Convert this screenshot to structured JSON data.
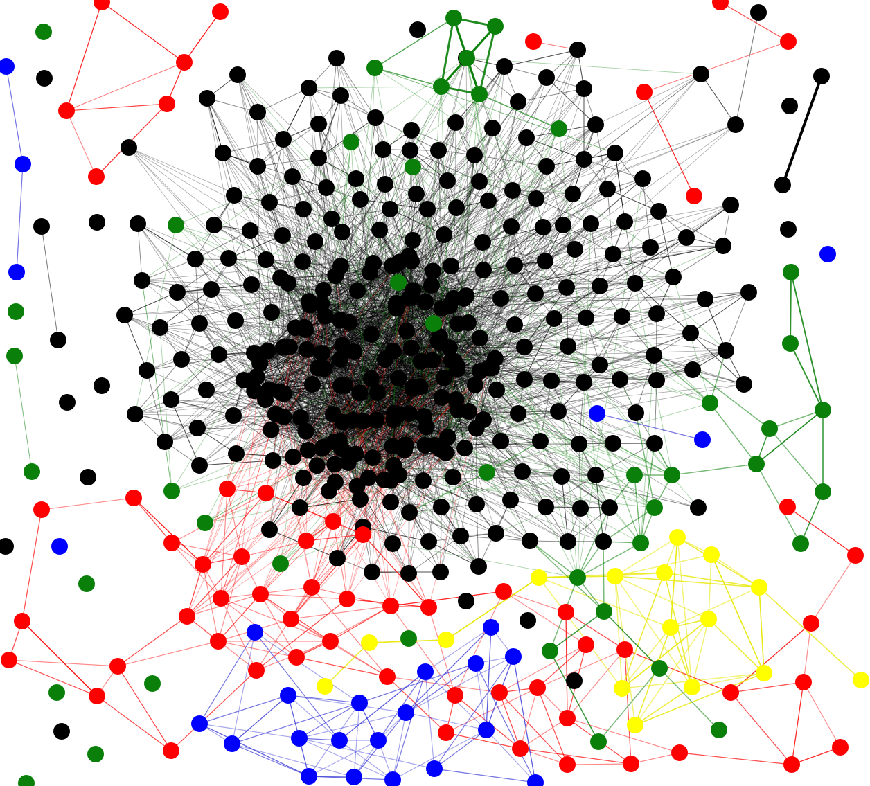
{
  "diagram": {
    "type": "network-graph",
    "background": "#ffffff",
    "node_colors": {
      "black": "#000000",
      "green": "#0a800a",
      "red": "#ff0000",
      "blue": "#0000ff",
      "yellow": "#ffff00"
    },
    "edge_colors": {
      "black": "#000000",
      "green": "#0a800a",
      "red": "#ff0000",
      "blue": "#3b3bd8",
      "yellow": "#e8e800"
    },
    "groups": [
      {
        "id": "black-cluster",
        "color": "black",
        "role": "dense central hub"
      },
      {
        "id": "green-cluster",
        "color": "green",
        "role": "scattered clusters"
      },
      {
        "id": "red-cluster",
        "color": "red",
        "role": "lower-left community"
      },
      {
        "id": "blue-cluster",
        "color": "blue",
        "role": "bottom-center community"
      },
      {
        "id": "yellow-cluster",
        "color": "yellow",
        "role": "lower-right community"
      }
    ]
  }
}
